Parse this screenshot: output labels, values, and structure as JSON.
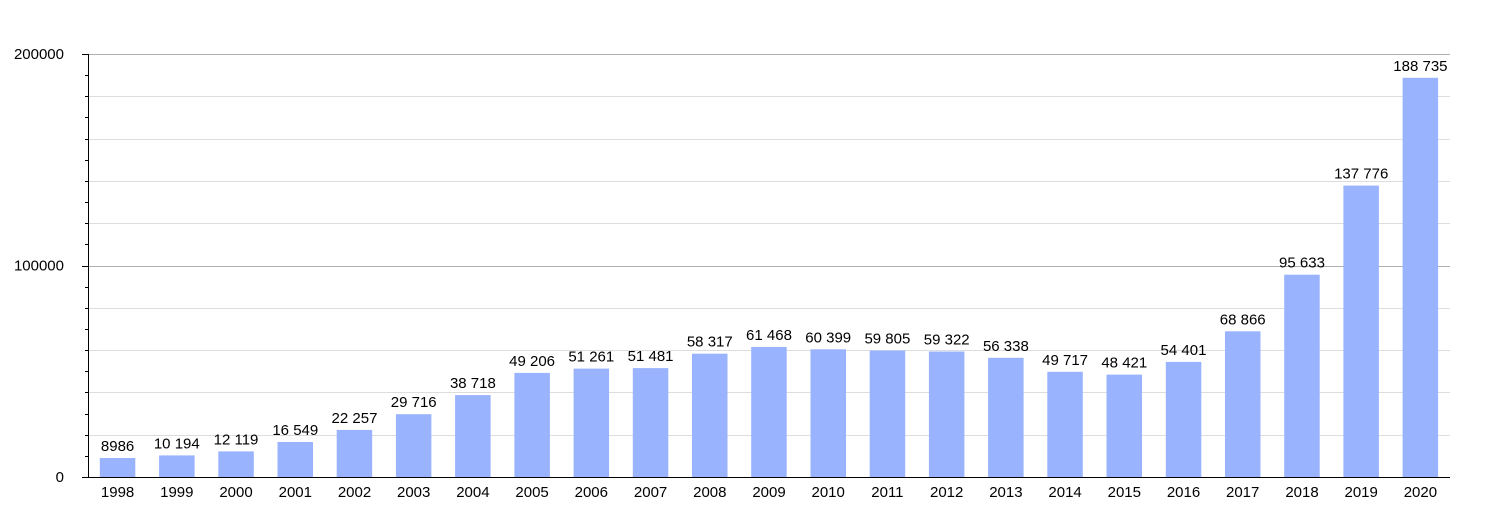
{
  "chart_data": {
    "type": "bar",
    "title": "",
    "xlabel": "",
    "ylabel": "",
    "categories": [
      "1998",
      "1999",
      "2000",
      "2001",
      "2002",
      "2003",
      "2004",
      "2005",
      "2006",
      "2007",
      "2008",
      "2009",
      "2010",
      "2011",
      "2012",
      "2013",
      "2014",
      "2015",
      "2016",
      "2017",
      "2018",
      "2019",
      "2020"
    ],
    "values": [
      8986,
      10194,
      12119,
      16549,
      22257,
      29716,
      38718,
      49206,
      51261,
      51481,
      58317,
      61468,
      60399,
      59805,
      59322,
      56338,
      49717,
      48421,
      54401,
      68866,
      95633,
      137776,
      188735
    ],
    "value_labels": [
      "8986",
      "10 194",
      "12 119",
      "16 549",
      "22 257",
      "29 716",
      "38 718",
      "49 206",
      "51 261",
      "51 481",
      "58 317",
      "61 468",
      "60 399",
      "59 805",
      "59 322",
      "56 338",
      "49 717",
      "48 421",
      "54 401",
      "68 866",
      "95 633",
      "137 776",
      "188 735"
    ],
    "ylim": [
      0,
      200000
    ],
    "y_ticks": [
      0,
      100000,
      200000
    ],
    "y_tick_labels": [
      "0",
      "100000",
      "200000"
    ],
    "grid": true,
    "legend": "none",
    "colors": {
      "bar": "#99b3ff",
      "grid": "#dddddd",
      "major_grid": "#b0b0b0",
      "axis": "#000000"
    }
  }
}
